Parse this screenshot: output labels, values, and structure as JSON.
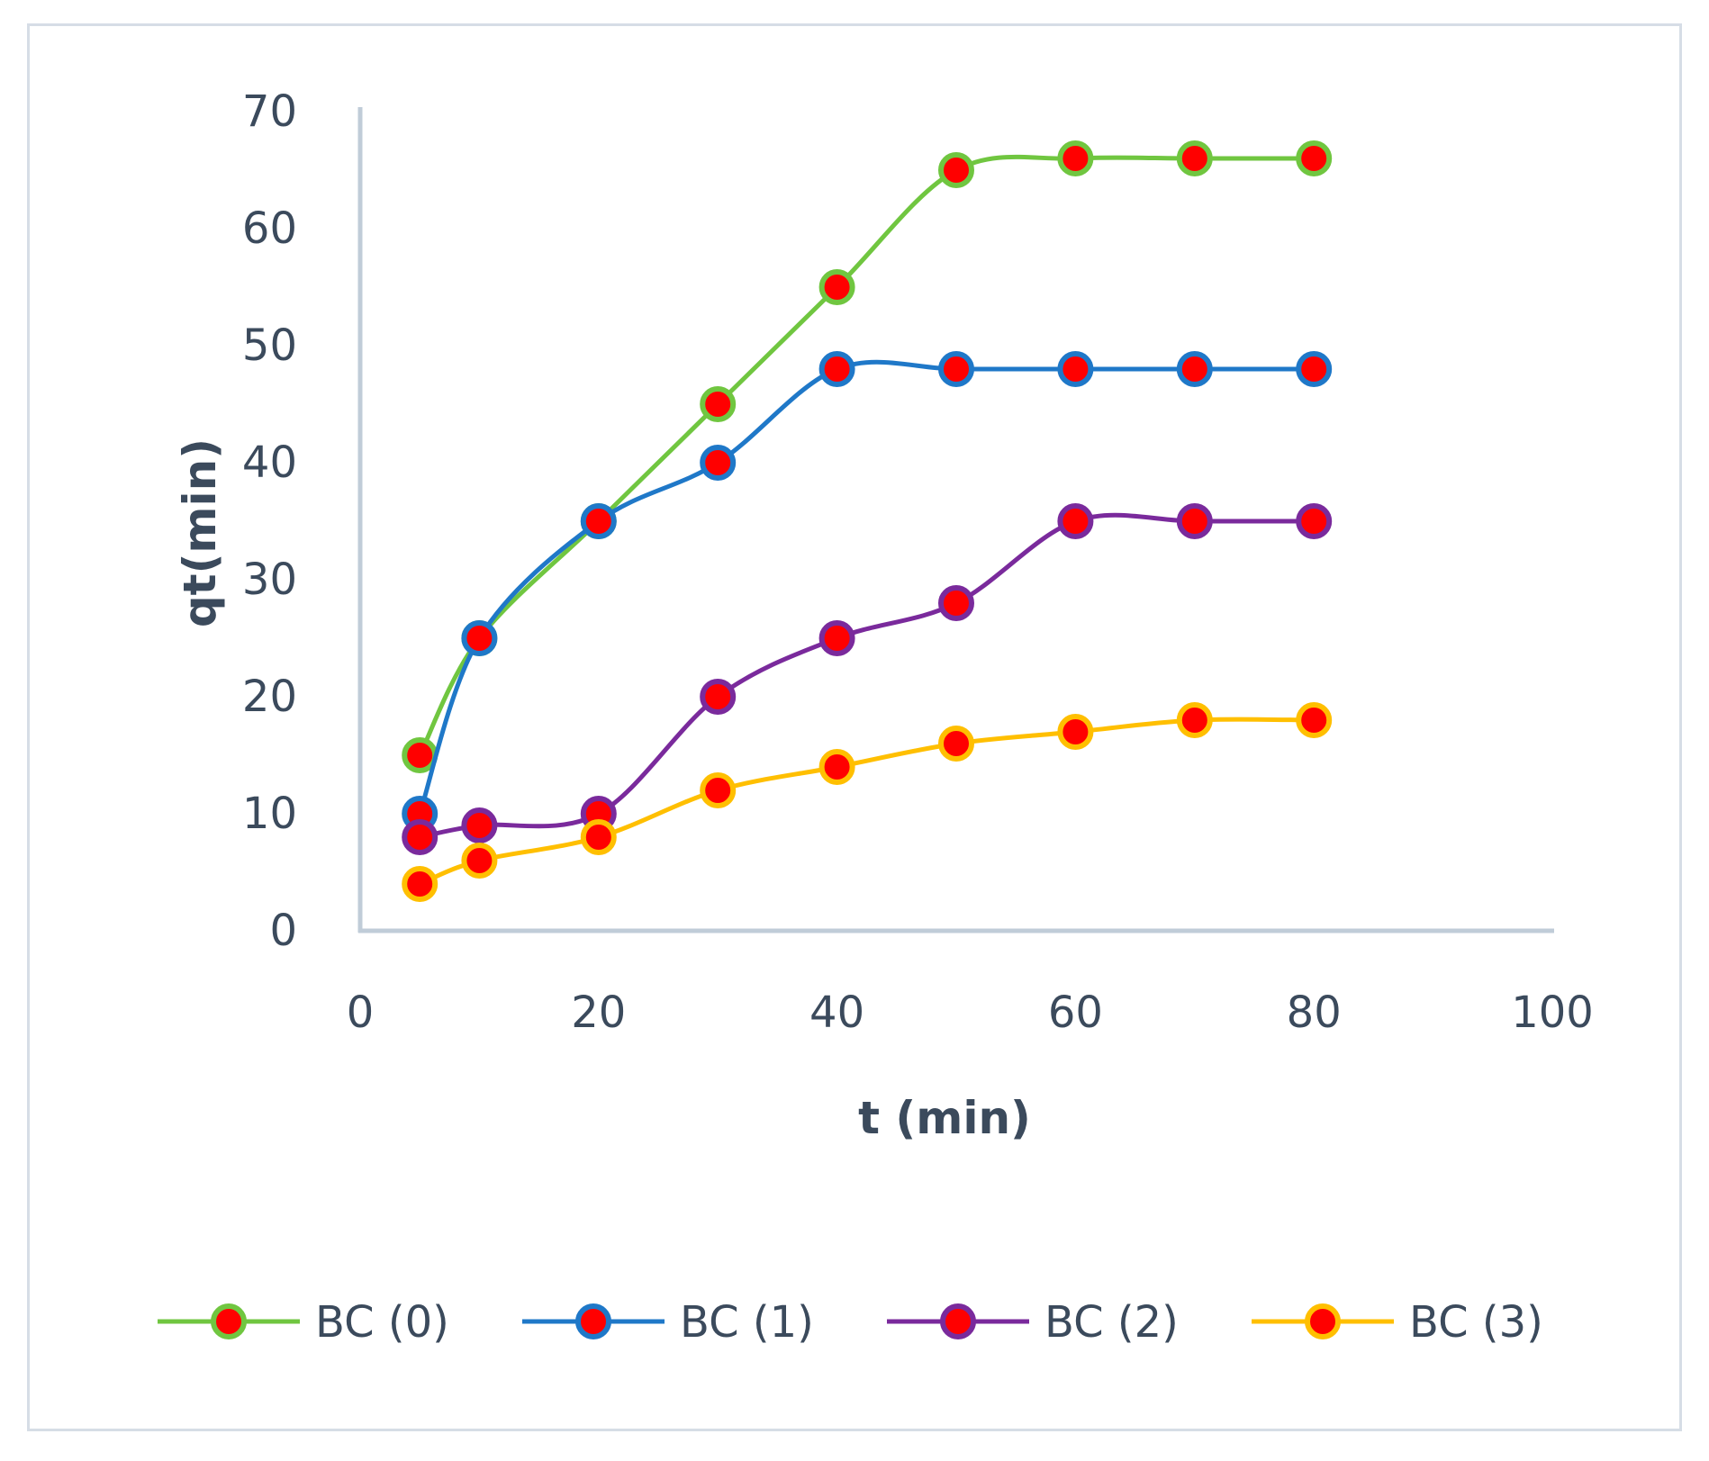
{
  "chart_data": {
    "type": "line",
    "xlabel": "t (min)",
    "ylabel": "qt(min)",
    "xlim": [
      0,
      100
    ],
    "ylim": [
      0,
      70
    ],
    "xticks": [
      "0",
      "20",
      "40",
      "60",
      "80",
      "100"
    ],
    "yticks": [
      "0",
      "10",
      "20",
      "30",
      "40",
      "50",
      "60",
      "70"
    ],
    "x": [
      5,
      10,
      20,
      30,
      40,
      50,
      60,
      70,
      80
    ],
    "grid": false,
    "legend": "bottom",
    "marker_fill": "#ff0000",
    "series": [
      {
        "name": "BC (0)",
        "color": "#70c640",
        "values": [
          15,
          25,
          35,
          45,
          55,
          65,
          66,
          66,
          66
        ]
      },
      {
        "name": "BC (1)",
        "color": "#1f78c8",
        "values": [
          10,
          25,
          35,
          40,
          48,
          48,
          48,
          48,
          48
        ]
      },
      {
        "name": "BC (2)",
        "color": "#7a2a9c",
        "values": [
          8,
          9,
          10,
          20,
          25,
          28,
          35,
          35,
          35
        ]
      },
      {
        "name": "BC (3)",
        "color": "#ffbf00",
        "values": [
          4,
          6,
          8,
          12,
          14,
          16,
          17,
          18,
          18
        ]
      }
    ]
  }
}
